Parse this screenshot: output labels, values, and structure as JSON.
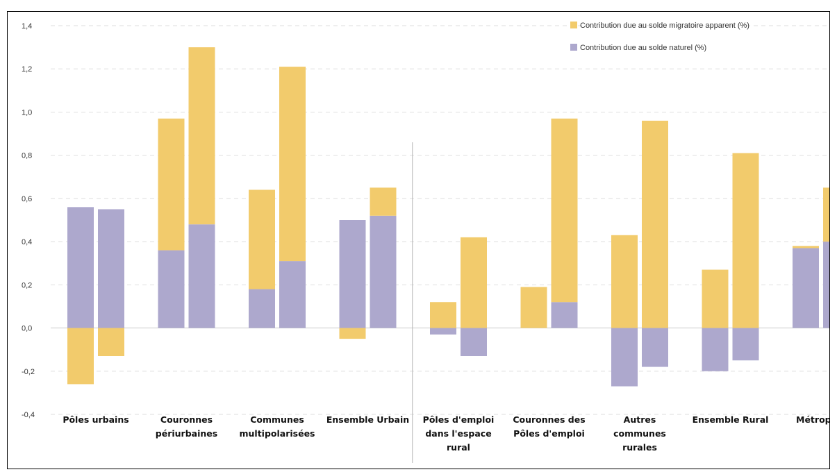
{
  "chart_data": {
    "type": "bar",
    "stacked": true,
    "categories": [
      "Pôles urbains",
      "Couronnes périurbaines",
      "Communes multipolarisées",
      "Ensemble Urbain",
      "Pôles d'emploi dans l'espace rural",
      "Couronnes des Pôles d'emploi",
      "Autres communes rurales",
      "Ensemble Rural",
      "Métropole"
    ],
    "category_lines": [
      [
        "Pôles urbains"
      ],
      [
        "Couronnes",
        "périurbaines"
      ],
      [
        "Communes",
        "multipolarisées"
      ],
      [
        "Ensemble Urbain"
      ],
      [
        "Pôles d'emploi",
        "dans l'espace",
        "rural"
      ],
      [
        "Couronnes des",
        "Pôles d'emploi"
      ],
      [
        "Autres",
        "communes",
        "rurales"
      ],
      [
        "Ensemble Rural"
      ],
      [
        "Métropole"
      ]
    ],
    "bars_per_category": 2,
    "series": [
      {
        "name": "Contribution due au solde naturel (%)",
        "color": "#ada8cd",
        "values": [
          [
            0.56,
            0.55
          ],
          [
            0.36,
            0.48
          ],
          [
            0.18,
            0.31
          ],
          [
            0.5,
            0.52
          ],
          [
            -0.03,
            -0.13
          ],
          [
            0.0,
            0.12
          ],
          [
            -0.27,
            -0.18
          ],
          [
            -0.2,
            -0.15
          ],
          [
            0.37,
            0.4
          ]
        ]
      },
      {
        "name": "Contribution due au solde migratoire apparent (%)",
        "color": "#f2cb6c",
        "values": [
          [
            -0.26,
            -0.13
          ],
          [
            0.61,
            0.82
          ],
          [
            0.46,
            0.9
          ],
          [
            -0.05,
            0.13
          ],
          [
            0.12,
            0.42
          ],
          [
            0.19,
            0.85
          ],
          [
            0.43,
            0.96
          ],
          [
            0.27,
            0.81
          ],
          [
            0.01,
            0.25
          ]
        ]
      }
    ],
    "ylim": [
      -0.4,
      1.4
    ],
    "yticks": [
      "-0,4",
      "-0,2",
      "0,0",
      "0,2",
      "0,4",
      "0,6",
      "0,8",
      "1,0",
      "1,2",
      "1,4"
    ],
    "legend": {
      "position": "top-right",
      "entries": [
        {
          "label": "Contribution due au solde migratoire apparent (%)",
          "color": "#f2cb6c"
        },
        {
          "label": "Contribution due au solde naturel (%)",
          "color": "#ada8cd"
        }
      ]
    },
    "grid": true,
    "group_separator_after_category": 3,
    "title": "",
    "xlabel": "",
    "ylabel": ""
  }
}
